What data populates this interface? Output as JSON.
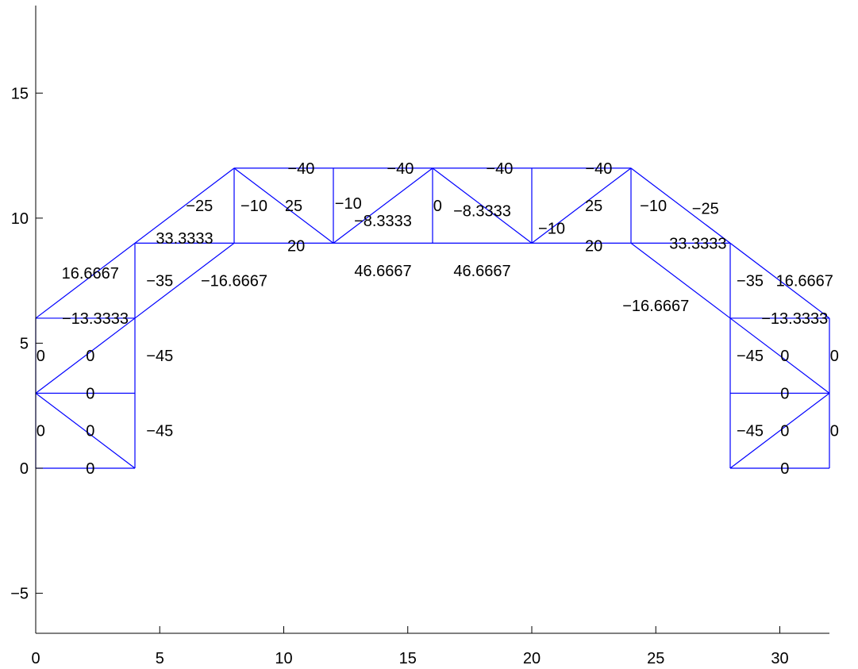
{
  "chart_data": {
    "type": "line",
    "title": "",
    "xlabel": "",
    "ylabel": "",
    "xlim": [
      0,
      32
    ],
    "ylim": [
      -6.6,
      18.5
    ],
    "x_ticks": [
      0,
      5,
      10,
      15,
      20,
      25,
      30
    ],
    "y_ticks": [
      -5,
      0,
      5,
      10,
      15
    ],
    "x_tick_labels": [
      "0",
      "5",
      "10",
      "15",
      "20",
      "25",
      "30"
    ],
    "y_tick_labels": [
      "−5",
      "0",
      "5",
      "10",
      "15"
    ],
    "grid": false,
    "line_color": "#0000ff",
    "members": [
      {
        "x": [
          0,
          4
        ],
        "y": [
          0,
          0
        ]
      },
      {
        "x": [
          0,
          0
        ],
        "y": [
          0,
          6
        ]
      },
      {
        "x": [
          4,
          4
        ],
        "y": [
          0,
          9
        ]
      },
      {
        "x": [
          0,
          4
        ],
        "y": [
          3,
          3
        ]
      },
      {
        "x": [
          0,
          4
        ],
        "y": [
          3,
          0
        ]
      },
      {
        "x": [
          0,
          4
        ],
        "y": [
          3,
          6
        ]
      },
      {
        "x": [
          0,
          4
        ],
        "y": [
          6,
          6
        ]
      },
      {
        "x": [
          0,
          8
        ],
        "y": [
          6,
          12
        ]
      },
      {
        "x": [
          4,
          8
        ],
        "y": [
          6,
          9
        ]
      },
      {
        "x": [
          4,
          24
        ],
        "y": [
          9,
          9
        ]
      },
      {
        "x": [
          8,
          8
        ],
        "y": [
          9,
          12
        ]
      },
      {
        "x": [
          8,
          24
        ],
        "y": [
          12,
          12
        ]
      },
      {
        "x": [
          8,
          12
        ],
        "y": [
          12,
          9
        ]
      },
      {
        "x": [
          12,
          12
        ],
        "y": [
          9,
          12
        ]
      },
      {
        "x": [
          12,
          16
        ],
        "y": [
          9,
          12
        ]
      },
      {
        "x": [
          16,
          16
        ],
        "y": [
          9,
          12
        ]
      },
      {
        "x": [
          16,
          20
        ],
        "y": [
          12,
          9
        ]
      },
      {
        "x": [
          20,
          20
        ],
        "y": [
          9,
          12
        ]
      },
      {
        "x": [
          20,
          24
        ],
        "y": [
          9,
          12
        ]
      },
      {
        "x": [
          24,
          24
        ],
        "y": [
          9,
          12
        ]
      },
      {
        "x": [
          24,
          32
        ],
        "y": [
          12,
          6
        ]
      },
      {
        "x": [
          24,
          28
        ],
        "y": [
          9,
          9
        ]
      },
      {
        "x": [
          24,
          28
        ],
        "y": [
          9,
          6
        ]
      },
      {
        "x": [
          28,
          28
        ],
        "y": [
          0,
          9
        ]
      },
      {
        "x": [
          28,
          32
        ],
        "y": [
          6,
          6
        ]
      },
      {
        "x": [
          32,
          32
        ],
        "y": [
          0,
          6
        ]
      },
      {
        "x": [
          28,
          32
        ],
        "y": [
          3,
          3
        ]
      },
      {
        "x": [
          28,
          32
        ],
        "y": [
          0,
          3
        ]
      },
      {
        "x": [
          28,
          32
        ],
        "y": [
          6,
          3
        ]
      },
      {
        "x": [
          28,
          32
        ],
        "y": [
          0,
          0
        ]
      }
    ],
    "annotations": [
      {
        "text": "0",
        "x": 2.2,
        "y": 0
      },
      {
        "text": "0",
        "x": 0.2,
        "y": 1.5
      },
      {
        "text": "0",
        "x": 2.2,
        "y": 1.5
      },
      {
        "text": "−45",
        "x": 5.0,
        "y": 1.5
      },
      {
        "text": "0",
        "x": 2.2,
        "y": 3
      },
      {
        "text": "0",
        "x": 0.2,
        "y": 4.5
      },
      {
        "text": "0",
        "x": 2.2,
        "y": 4.5
      },
      {
        "text": "−45",
        "x": 5.0,
        "y": 4.5
      },
      {
        "text": "−13.3333",
        "x": 2.4,
        "y": 6
      },
      {
        "text": "16.6667",
        "x": 2.2,
        "y": 7.8
      },
      {
        "text": "−35",
        "x": 5.0,
        "y": 7.5
      },
      {
        "text": "−16.6667",
        "x": 8.0,
        "y": 7.5
      },
      {
        "text": "33.3333",
        "x": 6.0,
        "y": 9.2
      },
      {
        "text": "−25",
        "x": 6.6,
        "y": 10.5
      },
      {
        "text": "−10",
        "x": 8.8,
        "y": 10.5
      },
      {
        "text": "25",
        "x": 10.4,
        "y": 10.5
      },
      {
        "text": "20",
        "x": 10.5,
        "y": 8.9
      },
      {
        "text": "−40",
        "x": 10.7,
        "y": 12
      },
      {
        "text": "−10",
        "x": 12.6,
        "y": 10.6
      },
      {
        "text": "−8.3333",
        "x": 14.0,
        "y": 9.9
      },
      {
        "text": "46.6667",
        "x": 14.0,
        "y": 7.9
      },
      {
        "text": "−40",
        "x": 14.7,
        "y": 12
      },
      {
        "text": "0",
        "x": 16.2,
        "y": 10.5
      },
      {
        "text": "−8.3333",
        "x": 18.0,
        "y": 10.3
      },
      {
        "text": "46.6667",
        "x": 18.0,
        "y": 7.9
      },
      {
        "text": "−40",
        "x": 18.7,
        "y": 12
      },
      {
        "text": "−10",
        "x": 20.8,
        "y": 9.6
      },
      {
        "text": "25",
        "x": 22.5,
        "y": 10.5
      },
      {
        "text": "20",
        "x": 22.5,
        "y": 8.9
      },
      {
        "text": "−40",
        "x": 22.7,
        "y": 12
      },
      {
        "text": "−10",
        "x": 24.9,
        "y": 10.5
      },
      {
        "text": "−25",
        "x": 27.0,
        "y": 10.4
      },
      {
        "text": "33.3333",
        "x": 26.7,
        "y": 9.0
      },
      {
        "text": "−16.6667",
        "x": 25.0,
        "y": 6.5
      },
      {
        "text": "−35",
        "x": 28.8,
        "y": 7.5
      },
      {
        "text": "16.6667",
        "x": 31.0,
        "y": 7.5
      },
      {
        "text": "−13.3333",
        "x": 30.6,
        "y": 6
      },
      {
        "text": "−45",
        "x": 28.8,
        "y": 4.5
      },
      {
        "text": "0",
        "x": 30.2,
        "y": 4.5
      },
      {
        "text": "0",
        "x": 32.2,
        "y": 4.5
      },
      {
        "text": "0",
        "x": 30.2,
        "y": 3
      },
      {
        "text": "−45",
        "x": 28.8,
        "y": 1.5
      },
      {
        "text": "0",
        "x": 30.2,
        "y": 1.5
      },
      {
        "text": "0",
        "x": 32.2,
        "y": 1.5
      },
      {
        "text": "0",
        "x": 30.2,
        "y": 0
      }
    ]
  }
}
